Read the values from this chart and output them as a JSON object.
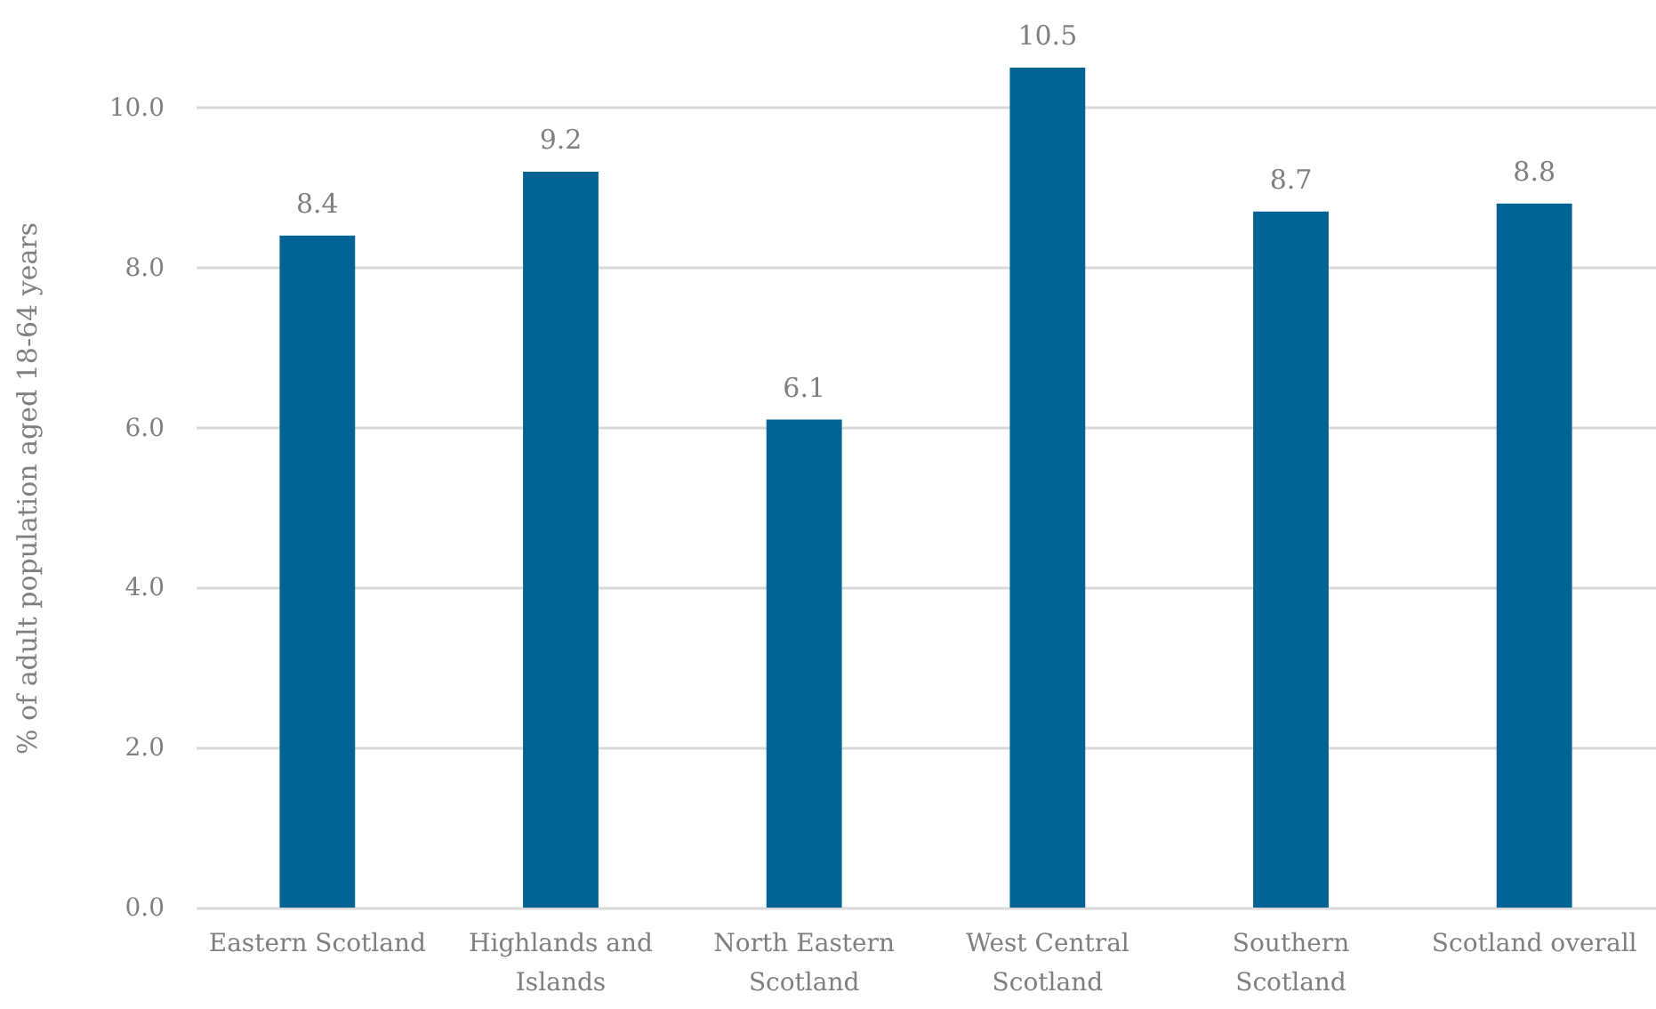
{
  "chart_data": {
    "type": "bar",
    "ylabel": "% of adult population aged 18-64 years",
    "categories": [
      "Eastern Scotland",
      "Highlands and Islands",
      "North Eastern Scotland",
      "West Central Scotland",
      "Southern Scotland",
      "Scotland overall"
    ],
    "values": [
      8.4,
      9.2,
      6.1,
      10.5,
      8.7,
      8.8
    ],
    "color": "#006394",
    "ylim": [
      0,
      10.5
    ],
    "yticks": [
      {
        "value": 0,
        "label": "0.0"
      },
      {
        "value": 2,
        "label": "2.0"
      },
      {
        "value": 4,
        "label": "4.0"
      },
      {
        "value": 6,
        "label": "6.0"
      },
      {
        "value": 8,
        "label": "8.0"
      },
      {
        "value": 10,
        "label": "10.0"
      }
    ],
    "grid": "y",
    "data_labels": true
  }
}
